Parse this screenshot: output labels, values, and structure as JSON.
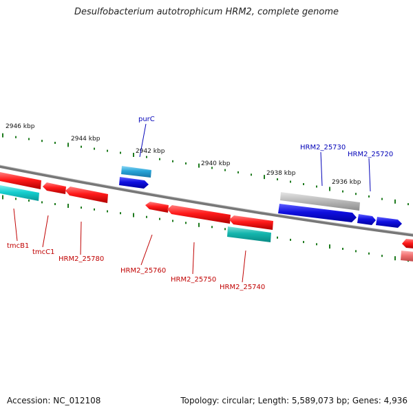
{
  "title": "Desulfobacterium autotrophicum HRM2, complete genome",
  "footer": {
    "accession": "Accession: NC_012108",
    "summary": "Topology: circular; Length: 5,589,073 bp; Genes: 4,936"
  },
  "colors": {
    "backbone": "#777777",
    "tick": "#1d7a1d",
    "gene_forward": "#1010e0",
    "gene_forward_light": "#2aa6d6",
    "gene_reverse": "#e01010",
    "gene_reverse_light": "#12c2c2",
    "pseudo_gray": "#b8b8b8",
    "label_blue": "#0000b8",
    "label_red": "#c00000"
  },
  "scale_ticks": [
    "2946 kbp",
    "2944 kbp",
    "2942 kbp",
    "2940 kbp",
    "2938 kbp",
    "2936 kbp"
  ],
  "gene_labels": {
    "top": [
      {
        "name": "purC"
      },
      {
        "name": "HRM2_25730"
      },
      {
        "name": "HRM2_25720"
      }
    ],
    "bottom": [
      {
        "name": "tmcB1"
      },
      {
        "name": "tmcC1"
      },
      {
        "name": "HRM2_25780"
      },
      {
        "name": "HRM2_25760"
      },
      {
        "name": "HRM2_25750"
      },
      {
        "name": "HRM2_25740"
      }
    ]
  }
}
